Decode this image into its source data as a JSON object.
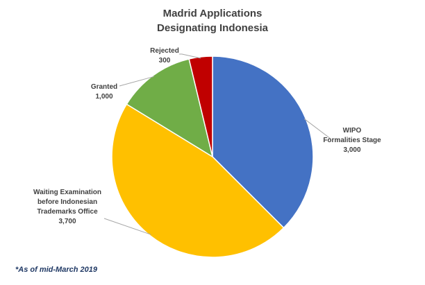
{
  "chart_data": {
    "type": "pie",
    "title_lines": [
      "Madrid Applications",
      "Designating Indonesia"
    ],
    "slices": [
      {
        "label_lines": [
          "WIPO",
          "Formalities Stage"
        ],
        "value": 3000,
        "value_label": "3,000",
        "color": "#4472c4"
      },
      {
        "label_lines": [
          "Waiting Examination",
          "before Indonesian",
          "Trademarks Office"
        ],
        "value": 3700,
        "value_label": "3,700",
        "color": "#ffc000"
      },
      {
        "label_lines": [
          "Granted"
        ],
        "value": 1000,
        "value_label": "1,000",
        "color": "#70ad47"
      },
      {
        "label_lines": [
          "Rejected"
        ],
        "value": 300,
        "value_label": "300",
        "color": "#c00000"
      }
    ],
    "start_angle_deg": 0,
    "direction": "clockwise",
    "legend": "none",
    "footnote": "*As of mid-March 2019"
  }
}
